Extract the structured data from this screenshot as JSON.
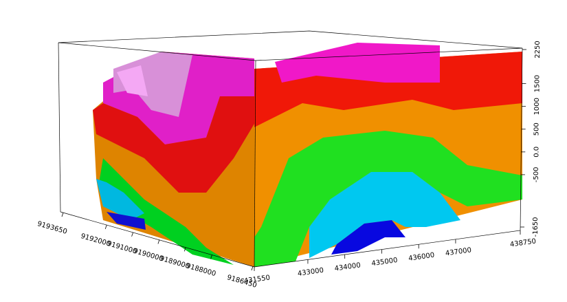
{
  "chart_data": {
    "type": "voxel3d",
    "xlim": [
      431550,
      438750
    ],
    "xticks": [
      431550,
      433000,
      434000,
      435000,
      436000,
      437000,
      438750
    ],
    "ylim": [
      9193650,
      9186450
    ],
    "yticks": [
      9193650,
      9192000,
      9191000,
      9190000,
      9189000,
      9188000,
      9186450
    ],
    "zlim": [
      -1650,
      2250
    ],
    "zticks": [
      -1650,
      -500,
      {
        "value": 0,
        "label": "0.0"
      },
      500,
      1000,
      1500,
      2250
    ]
  }
}
